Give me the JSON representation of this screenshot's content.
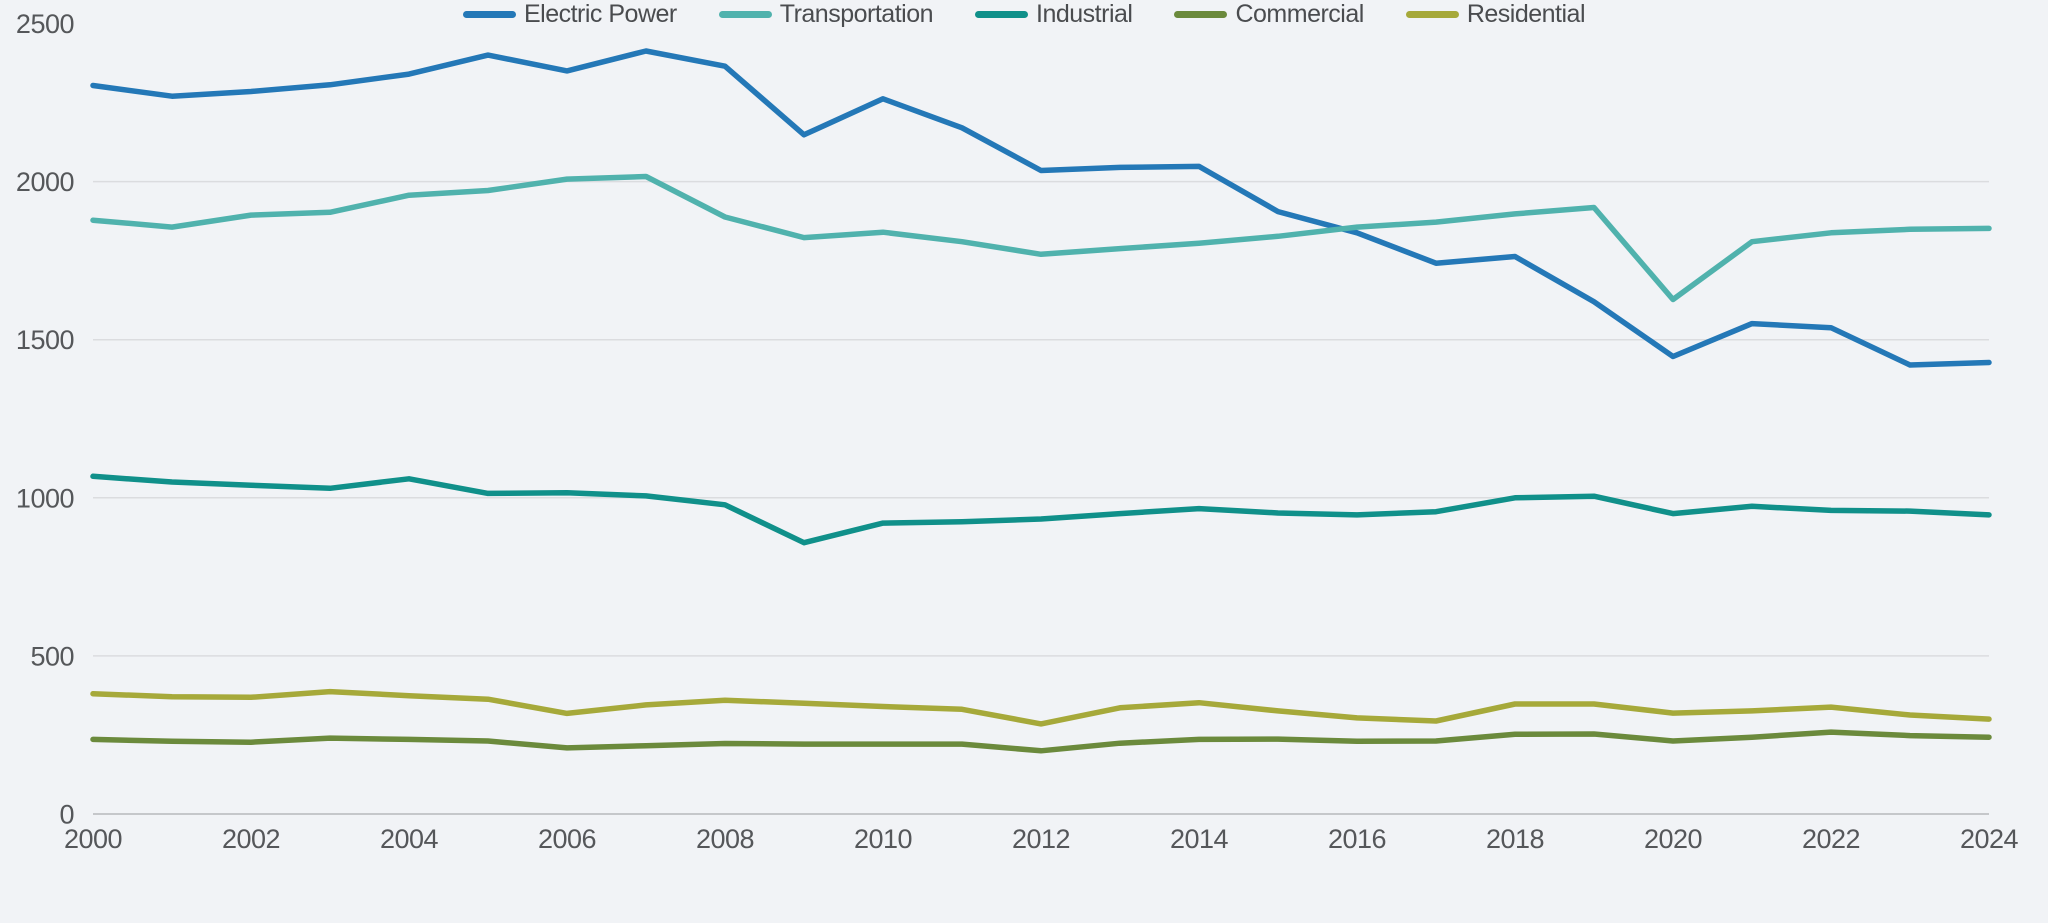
{
  "chart_data": {
    "type": "line",
    "title": "",
    "xlabel": "",
    "ylabel": "",
    "x": [
      2000,
      2001,
      2002,
      2003,
      2004,
      2005,
      2006,
      2007,
      2008,
      2009,
      2010,
      2011,
      2012,
      2013,
      2014,
      2015,
      2016,
      2017,
      2018,
      2019,
      2020,
      2021,
      2022,
      2023,
      2024
    ],
    "x_ticks": [
      2000,
      2002,
      2004,
      2006,
      2008,
      2010,
      2012,
      2014,
      2016,
      2018,
      2020,
      2022,
      2024
    ],
    "y_ticks": [
      0,
      500,
      1000,
      1500,
      2000,
      2500
    ],
    "ylim": [
      0,
      2500
    ],
    "grid": "horizontal",
    "legend_position": "bottom-center",
    "series": [
      {
        "name": "Electric Power",
        "color": "#2478b7",
        "values": [
          2304,
          2270,
          2285,
          2306,
          2340,
          2400,
          2350,
          2413,
          2365,
          2148,
          2262,
          2170,
          2035,
          2045,
          2048,
          1905,
          1838,
          1742,
          1763,
          1620,
          1447,
          1551,
          1538,
          1420,
          1428
        ]
      },
      {
        "name": "Transportation",
        "color": "#50b2ad",
        "values": [
          1878,
          1856,
          1894,
          1903,
          1957,
          1972,
          2008,
          2016,
          1888,
          1823,
          1840,
          1810,
          1770,
          1788,
          1805,
          1827,
          1856,
          1872,
          1898,
          1918,
          1627,
          1810,
          1838,
          1849,
          1852
        ]
      },
      {
        "name": "Industrial",
        "color": "#10908a",
        "values": [
          1068,
          1050,
          1040,
          1030,
          1060,
          1014,
          1016,
          1006,
          978,
          858,
          920,
          924,
          933,
          950,
          966,
          952,
          946,
          956,
          1000,
          1005,
          950,
          973,
          960,
          958,
          946
        ]
      },
      {
        "name": "Commercial",
        "color": "#6b8a3c",
        "values": [
          236,
          230,
          227,
          240,
          236,
          231,
          209,
          216,
          223,
          221,
          221,
          221,
          200,
          224,
          236,
          237,
          230,
          231,
          252,
          253,
          231,
          243,
          259,
          248,
          243
        ]
      },
      {
        "name": "Residential",
        "color": "#a6a93a",
        "values": [
          380,
          371,
          369,
          387,
          374,
          363,
          318,
          345,
          360,
          350,
          340,
          331,
          285,
          336,
          352,
          326,
          304,
          294,
          348,
          348,
          319,
          326,
          338,
          313,
          300
        ]
      }
    ]
  },
  "styles": {
    "background": "#f1f3f6",
    "gridline_color": "#dbdcdf",
    "axis_line_color": "#c5c7ca",
    "tick_label_color": "#55575a",
    "legend_text_color": "#4a4c4f"
  }
}
